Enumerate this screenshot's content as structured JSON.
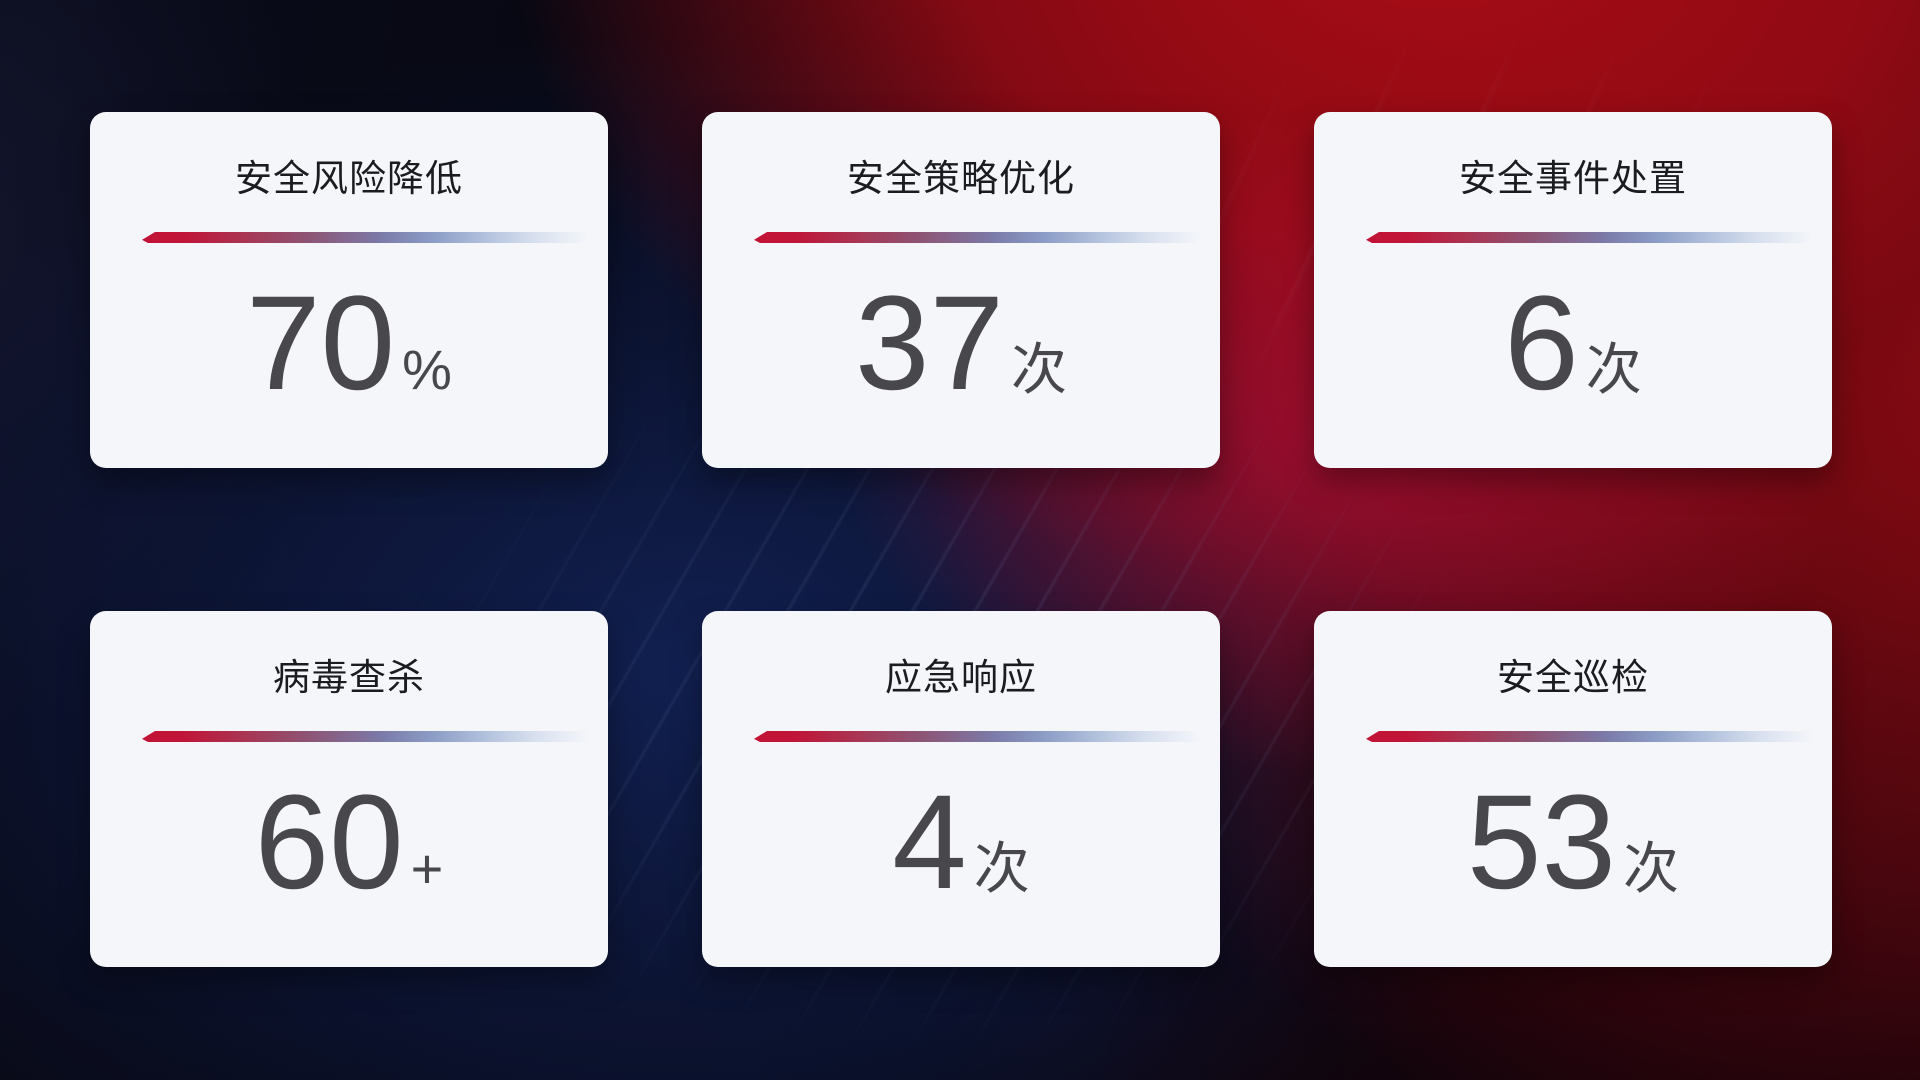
{
  "theme": {
    "card_bg": "#f4f6fa",
    "title_color": "#1b1c20",
    "value_color": "#48484c",
    "accent_red": "#c31335",
    "accent_blue_gray": "#8b9cc6",
    "bg_dark_navy": "#0f1b48",
    "bg_red": "#a50d16"
  },
  "cards": [
    {
      "title": "安全风险降低",
      "value": "70",
      "unit": "%"
    },
    {
      "title": "安全策略优化",
      "value": "37",
      "unit": "次"
    },
    {
      "title": "安全事件处置",
      "value": "6",
      "unit": "次"
    },
    {
      "title": "病毒查杀",
      "value": "60",
      "unit": "+"
    },
    {
      "title": "应急响应",
      "value": "4",
      "unit": "次"
    },
    {
      "title": "安全巡检",
      "value": "53",
      "unit": "次"
    }
  ]
}
